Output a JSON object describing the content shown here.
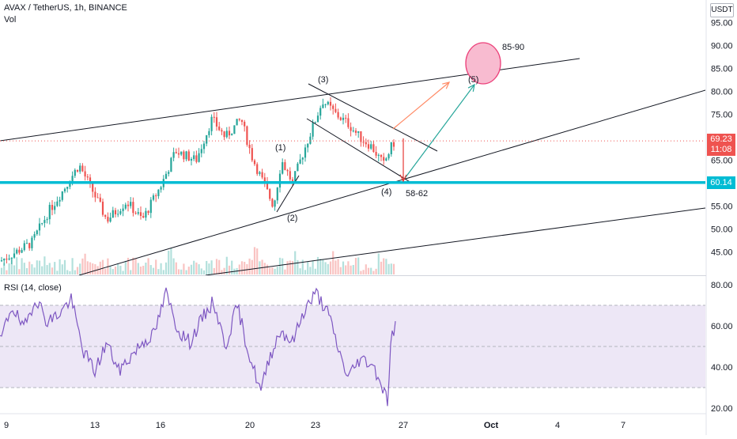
{
  "header": {
    "symbol_line": "AVAX / TetherUS, 1h, BINANCE",
    "vol_label": "Vol",
    "currency": "USDT"
  },
  "rsi_label": "RSI (14, close)",
  "price_badge": {
    "price": "69.23",
    "countdown": "11:08",
    "color": "#ef5350"
  },
  "level_badge": {
    "text": "60.14",
    "color": "#00bcd4"
  },
  "chart_data": [
    {
      "type": "candlestick",
      "title": "AVAX / TetherUS, 1h, BINANCE",
      "ylim": [
        40,
        97
      ],
      "y_ticks": [
        45,
        50,
        55,
        60,
        65,
        70,
        75,
        80,
        85,
        90,
        95
      ],
      "y_tick_labels": [
        "45.00",
        "50.00",
        "55.00",
        "60.00",
        "65.00",
        "70.00",
        "75.00",
        "80.00",
        "85.00",
        "90.00",
        "95.00"
      ],
      "x_tick_labels": [
        "9",
        "13",
        "16",
        "20",
        "23",
        "27",
        "Oct",
        "4",
        "7"
      ],
      "price_path": [
        {
          "t": 0,
          "p": 43.0
        },
        {
          "t": 40,
          "p": 47.0
        },
        {
          "t": 62,
          "p": 54.0
        },
        {
          "t": 78,
          "p": 58.0
        },
        {
          "t": 100,
          "p": 64.0
        },
        {
          "t": 118,
          "p": 58.0
        },
        {
          "t": 135,
          "p": 52.0
        },
        {
          "t": 160,
          "p": 56.0
        },
        {
          "t": 180,
          "p": 52.0
        },
        {
          "t": 205,
          "p": 60.0
        },
        {
          "t": 222,
          "p": 67.0
        },
        {
          "t": 248,
          "p": 65.0
        },
        {
          "t": 268,
          "p": 74.0
        },
        {
          "t": 285,
          "p": 70.0
        },
        {
          "t": 305,
          "p": 74.0
        },
        {
          "t": 318,
          "p": 66.0
        },
        {
          "t": 333,
          "p": 60.0
        },
        {
          "t": 346,
          "p": 55.0
        },
        {
          "t": 356,
          "p": 65.0
        },
        {
          "t": 370,
          "p": 60.0
        },
        {
          "t": 382,
          "p": 66.0
        },
        {
          "t": 395,
          "p": 72.0
        },
        {
          "t": 408,
          "p": 78.0
        },
        {
          "t": 425,
          "p": 75.0
        },
        {
          "t": 440,
          "p": 73.0
        },
        {
          "t": 455,
          "p": 70.0
        },
        {
          "t": 470,
          "p": 68.0
        },
        {
          "t": 485,
          "p": 64.0
        },
        {
          "t": 495,
          "p": 68.0
        },
        {
          "t": 500,
          "p": 69.2
        }
      ],
      "last_price": 69.23,
      "horizontal_level": 60.14,
      "annotations": {
        "waves": [
          "(1)",
          "(2)",
          "(3)",
          "(4)",
          "(5)"
        ],
        "targets": [
          "85-90",
          "58-62"
        ]
      }
    },
    {
      "type": "line",
      "title": "RSI (14, close)",
      "ylim": [
        18,
        82
      ],
      "y_ticks": [
        20,
        40,
        60,
        80
      ],
      "y_tick_labels": [
        "20.00",
        "40.00",
        "60.00",
        "80.00"
      ],
      "bands": [
        30,
        50,
        70
      ],
      "rsi_path": [
        {
          "t": 0,
          "v": 52
        },
        {
          "t": 15,
          "v": 70
        },
        {
          "t": 30,
          "v": 58
        },
        {
          "t": 45,
          "v": 74
        },
        {
          "t": 60,
          "v": 62
        },
        {
          "t": 75,
          "v": 66
        },
        {
          "t": 90,
          "v": 73
        },
        {
          "t": 105,
          "v": 48
        },
        {
          "t": 120,
          "v": 38
        },
        {
          "t": 135,
          "v": 52
        },
        {
          "t": 150,
          "v": 38
        },
        {
          "t": 165,
          "v": 45
        },
        {
          "t": 180,
          "v": 52
        },
        {
          "t": 195,
          "v": 56
        },
        {
          "t": 210,
          "v": 76
        },
        {
          "t": 225,
          "v": 58
        },
        {
          "t": 240,
          "v": 52
        },
        {
          "t": 255,
          "v": 63
        },
        {
          "t": 270,
          "v": 72
        },
        {
          "t": 285,
          "v": 50
        },
        {
          "t": 300,
          "v": 70
        },
        {
          "t": 315,
          "v": 46
        },
        {
          "t": 330,
          "v": 28
        },
        {
          "t": 340,
          "v": 44
        },
        {
          "t": 355,
          "v": 58
        },
        {
          "t": 370,
          "v": 52
        },
        {
          "t": 385,
          "v": 68
        },
        {
          "t": 400,
          "v": 76
        },
        {
          "t": 415,
          "v": 66
        },
        {
          "t": 430,
          "v": 46
        },
        {
          "t": 440,
          "v": 35
        },
        {
          "t": 455,
          "v": 44
        },
        {
          "t": 470,
          "v": 42
        },
        {
          "t": 480,
          "v": 34
        },
        {
          "t": 490,
          "v": 24
        },
        {
          "t": 495,
          "v": 55
        },
        {
          "t": 500,
          "v": 60
        }
      ]
    }
  ],
  "colors": {
    "up": "#26a69a",
    "down": "#ef5350",
    "rsi_line": "#7e57c2",
    "rsi_band": "#ede7f6",
    "level": "#00bcd4",
    "target_circle": "#f06292"
  }
}
